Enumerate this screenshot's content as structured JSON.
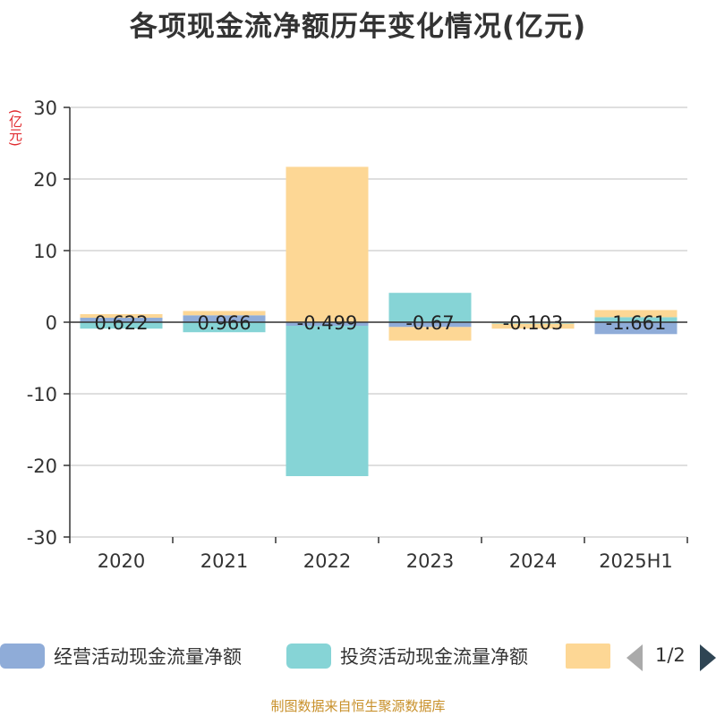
{
  "colors": {
    "operating": "#8facd8",
    "investing": "#86d4d6",
    "financing": "#fdd795",
    "grid": "#cccccc",
    "axis": "#333333",
    "unit": "#e0282c",
    "source": "#c8902a"
  },
  "chart_data": {
    "type": "bar",
    "stacked": true,
    "title": "各项现金流净额历年变化情况(亿元)",
    "ylabel": "(亿元)",
    "ylim": [
      -30,
      30
    ],
    "yticks": [
      30,
      20,
      10,
      0,
      -10,
      -20,
      -30
    ],
    "categories": [
      "2020",
      "2021",
      "2022",
      "2023",
      "2024",
      "2025H1"
    ],
    "series": [
      {
        "name": "经营活动现金流量净额",
        "color_key": "operating",
        "values": [
          0.622,
          0.966,
          -0.499,
          -0.67,
          -0.103,
          -1.661
        ],
        "labels": [
          "0.622",
          "0.966",
          "-0.499",
          "-0.67",
          "-0.103",
          "-1.661"
        ]
      },
      {
        "name": "投资活动现金流量净额",
        "color_key": "investing",
        "values": [
          -0.9,
          -1.4,
          -21.0,
          4.1,
          -0.1,
          0.7
        ]
      },
      {
        "name": "",
        "color_key": "financing",
        "values": [
          0.5,
          0.6,
          21.7,
          -1.9,
          -0.7,
          1.0
        ]
      }
    ],
    "grid": true,
    "legend_position": "bottom"
  },
  "legend": {
    "items": [
      "经营活动现金流量净额",
      "投资活动现金流量净额",
      ""
    ],
    "page": "1/2"
  },
  "source": "制图数据来自恒生聚源数据库"
}
